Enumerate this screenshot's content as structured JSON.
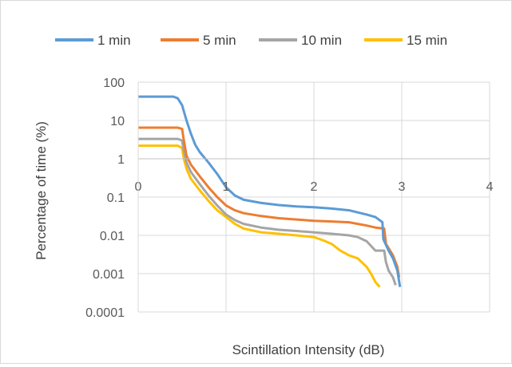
{
  "chart_data": {
    "type": "line",
    "title": "",
    "xlabel": "Scintillation Intensity (dB)",
    "ylabel": "Percentage of time (%)",
    "x_scale": "linear",
    "y_scale": "log",
    "xlim": [
      0,
      4
    ],
    "ylim": [
      0.0001,
      100
    ],
    "x_ticks": [
      "0",
      "1",
      "2",
      "3",
      "4"
    ],
    "y_ticks": [
      "0.0001",
      "0.001",
      "0.01",
      "0.1",
      "1",
      "10",
      "100"
    ],
    "y_tick_values": [
      0.0001,
      0.001,
      0.01,
      0.1,
      1,
      10,
      100
    ],
    "x_tick_values": [
      0,
      1,
      2,
      3,
      4
    ],
    "grid": true,
    "legend_position": "top",
    "series": [
      {
        "name": "1 min",
        "color": "#5B9BD5",
        "x": [
          0,
          0.3,
          0.4,
          0.45,
          0.5,
          0.55,
          0.6,
          0.65,
          0.7,
          0.8,
          0.9,
          1.0,
          1.1,
          1.2,
          1.4,
          1.6,
          1.8,
          2.0,
          2.2,
          2.4,
          2.6,
          2.7,
          2.78,
          2.79,
          2.85,
          2.9,
          2.95,
          2.98
        ],
        "y": [
          42,
          42,
          42,
          38,
          25,
          10,
          4.5,
          2.3,
          1.5,
          0.8,
          0.4,
          0.18,
          0.11,
          0.085,
          0.07,
          0.062,
          0.057,
          0.054,
          0.05,
          0.045,
          0.035,
          0.03,
          0.022,
          0.008,
          0.004,
          0.0025,
          0.0012,
          0.00045
        ]
      },
      {
        "name": "5 min",
        "color": "#ED7D31",
        "x": [
          0,
          0.3,
          0.45,
          0.5,
          0.52,
          0.55,
          0.6,
          0.7,
          0.8,
          0.9,
          1.0,
          1.1,
          1.2,
          1.4,
          1.6,
          1.8,
          2.0,
          2.2,
          2.4,
          2.6,
          2.7,
          2.8,
          2.82,
          2.9,
          2.95,
          2.97
        ],
        "y": [
          6.5,
          6.5,
          6.5,
          6.0,
          3.0,
          1.2,
          0.7,
          0.35,
          0.18,
          0.1,
          0.06,
          0.045,
          0.038,
          0.032,
          0.028,
          0.026,
          0.024,
          0.023,
          0.022,
          0.018,
          0.016,
          0.015,
          0.006,
          0.003,
          0.0015,
          0.0008
        ]
      },
      {
        "name": "10 min",
        "color": "#A5A5A5",
        "x": [
          0,
          0.3,
          0.45,
          0.5,
          0.52,
          0.55,
          0.6,
          0.7,
          0.8,
          0.9,
          1.0,
          1.1,
          1.2,
          1.4,
          1.6,
          1.8,
          2.0,
          2.2,
          2.4,
          2.5,
          2.6,
          2.7,
          2.8,
          2.82,
          2.85,
          2.9,
          2.93
        ],
        "y": [
          3.3,
          3.3,
          3.3,
          3.0,
          1.6,
          0.8,
          0.45,
          0.22,
          0.11,
          0.06,
          0.035,
          0.025,
          0.02,
          0.016,
          0.014,
          0.013,
          0.012,
          0.011,
          0.01,
          0.009,
          0.007,
          0.004,
          0.004,
          0.002,
          0.0012,
          0.0008,
          0.0005
        ]
      },
      {
        "name": "15 min",
        "color": "#FFC000",
        "x": [
          0,
          0.3,
          0.45,
          0.5,
          0.52,
          0.55,
          0.6,
          0.7,
          0.8,
          0.9,
          1.0,
          1.1,
          1.2,
          1.4,
          1.6,
          1.8,
          2.0,
          2.1,
          2.2,
          2.3,
          2.4,
          2.5,
          2.6,
          2.65,
          2.7,
          2.75
        ],
        "y": [
          2.2,
          2.2,
          2.2,
          1.9,
          1.0,
          0.55,
          0.3,
          0.15,
          0.08,
          0.045,
          0.03,
          0.02,
          0.015,
          0.012,
          0.011,
          0.01,
          0.009,
          0.0075,
          0.006,
          0.004,
          0.003,
          0.0025,
          0.0015,
          0.001,
          0.0006,
          0.00045
        ]
      }
    ]
  }
}
